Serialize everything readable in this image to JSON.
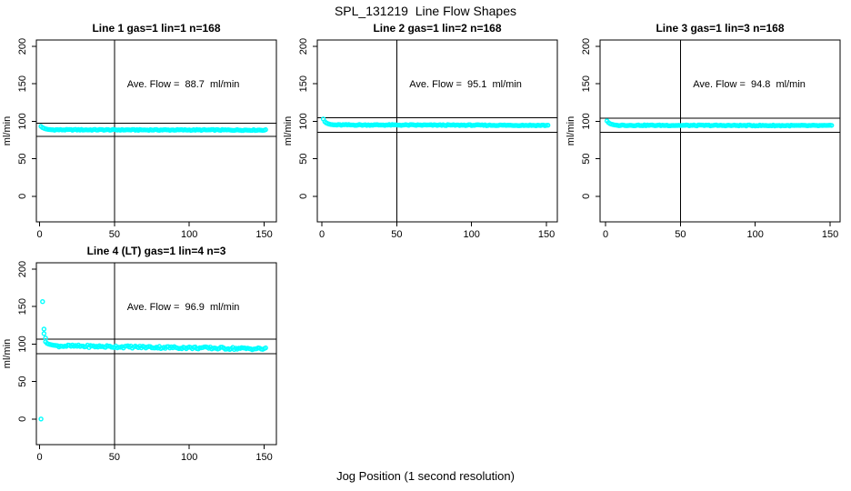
{
  "page": {
    "title": "SPL_131219  Line Flow Shapes",
    "xlabel": "Jog Position (1 second resolution)",
    "background": "#ffffff",
    "text_color": "#000000"
  },
  "style": {
    "point_color": "#00ffff",
    "line_color": "#000000"
  },
  "chart_data": [
    {
      "type": "scatter",
      "title": "Line 1 gas=1 lin=1 n=168",
      "annotation": "Ave. Flow =  88.7  ml/min",
      "ave_flow_ml_min": 88.7,
      "n": 168,
      "ylabel": "ml/min",
      "x_ticks": [
        0,
        50,
        100,
        150
      ],
      "y_ticks": [
        0,
        50,
        100,
        150,
        200
      ],
      "xlim": [
        -2,
        158
      ],
      "ylim": [
        -34,
        209
      ],
      "grid": false,
      "vline_x": 50,
      "ref_lines": [
        97.6,
        79.8
      ],
      "annotation_pos": {
        "x": 96,
        "y": 150
      },
      "transient_points": [
        [
          1,
          93.2
        ],
        [
          2,
          91.6
        ],
        [
          3,
          90.6
        ],
        [
          4,
          89.9
        ],
        [
          5,
          89.4
        ],
        [
          6,
          89.1
        ],
        [
          7,
          88.9
        ],
        [
          8,
          88.7
        ]
      ],
      "steady_segment": {
        "x_from": 9,
        "x_to": 151,
        "y_start": 88.7,
        "y_end": 88.3,
        "noise": 0.6
      }
    },
    {
      "type": "scatter",
      "title": "Line 2 gas=1 lin=2 n=168",
      "annotation": "Ave. Flow =  95.1  ml/min",
      "ave_flow_ml_min": 95.1,
      "n": 168,
      "ylabel": "ml/min",
      "x_ticks": [
        0,
        50,
        100,
        150
      ],
      "y_ticks": [
        0,
        50,
        100,
        150,
        200
      ],
      "xlim": [
        -2,
        158
      ],
      "ylim": [
        -34,
        209
      ],
      "grid": false,
      "vline_x": 50,
      "ref_lines": [
        104.6,
        85.6
      ],
      "annotation_pos": {
        "x": 96,
        "y": 150
      },
      "transient_points": [
        [
          1,
          103.0
        ],
        [
          2,
          99.5
        ],
        [
          3,
          97.8
        ],
        [
          4,
          96.8
        ],
        [
          5,
          96.2
        ],
        [
          6,
          95.8
        ],
        [
          7,
          95.5
        ],
        [
          8,
          95.3
        ]
      ],
      "steady_segment": {
        "x_from": 9,
        "x_to": 151,
        "y_start": 95.2,
        "y_end": 94.6,
        "noise": 0.6
      }
    },
    {
      "type": "scatter",
      "title": "Line 3 gas=1 lin=3 n=168",
      "annotation": "Ave. Flow =  94.8  ml/min",
      "ave_flow_ml_min": 94.8,
      "n": 168,
      "ylabel": "ml/min",
      "x_ticks": [
        0,
        50,
        100,
        150
      ],
      "y_ticks": [
        0,
        50,
        100,
        150,
        200
      ],
      "xlim": [
        -2,
        158
      ],
      "ylim": [
        -34,
        209
      ],
      "grid": false,
      "vline_x": 50,
      "ref_lines": [
        104.3,
        85.3
      ],
      "annotation_pos": {
        "x": 96,
        "y": 150
      },
      "transient_points": [
        [
          1,
          100.5
        ],
        [
          2,
          98.3
        ],
        [
          3,
          96.9
        ],
        [
          4,
          96.1
        ],
        [
          5,
          95.6
        ],
        [
          6,
          95.2
        ],
        [
          7,
          94.9
        ],
        [
          8,
          94.7
        ]
      ],
      "steady_segment": {
        "x_from": 9,
        "x_to": 151,
        "y_start": 94.7,
        "y_end": 94.2,
        "noise": 0.6
      }
    },
    {
      "type": "scatter",
      "title": "Line 4 (LT) gas=1 lin=4 n=3",
      "annotation": "Ave. Flow =  96.9  ml/min",
      "ave_flow_ml_min": 96.9,
      "n": 3,
      "ylabel": "ml/min",
      "x_ticks": [
        0,
        50,
        100,
        150
      ],
      "y_ticks": [
        0,
        50,
        100,
        150,
        200
      ],
      "xlim": [
        -2,
        158
      ],
      "ylim": [
        -34,
        209
      ],
      "grid": false,
      "vline_x": 50,
      "ref_lines": [
        106.6,
        87.2
      ],
      "annotation_pos": {
        "x": 96,
        "y": 150
      },
      "transient_points": [
        [
          1,
          0
        ],
        [
          2,
          156.7
        ],
        [
          3,
          120
        ],
        [
          3,
          114
        ],
        [
          4,
          108
        ],
        [
          4,
          103
        ],
        [
          5,
          101
        ],
        [
          6,
          100
        ],
        [
          7,
          99.5
        ],
        [
          8,
          99
        ],
        [
          9,
          98.6
        ],
        [
          10,
          98.3
        ],
        [
          11,
          98
        ],
        [
          12,
          97.8
        ]
      ],
      "steady_segment": {
        "x_from": 13,
        "x_to": 151,
        "y_start": 97.6,
        "y_end": 93.6,
        "noise": 1.6
      }
    }
  ]
}
